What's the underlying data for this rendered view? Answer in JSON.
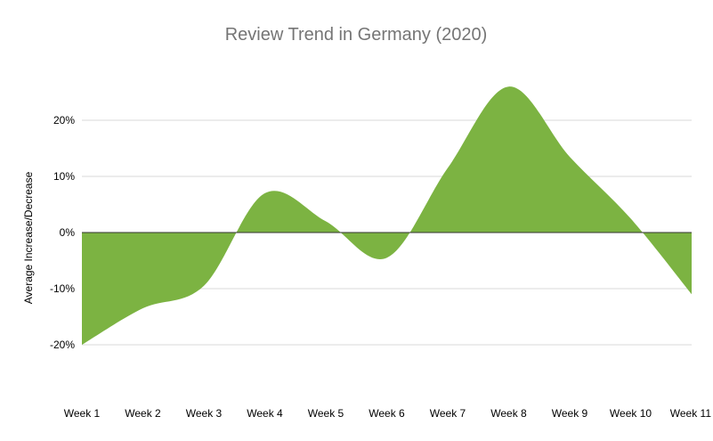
{
  "chart_data": {
    "type": "area",
    "title": "Review Trend in Germany (2020)",
    "xlabel": "",
    "ylabel": "Average Increase/Decrease",
    "categories": [
      "Week 1",
      "Week 2",
      "Week 3",
      "Week 4",
      "Week 5",
      "Week 6",
      "Week 7",
      "Week 8",
      "Week 9",
      "Week 10",
      "Week 11"
    ],
    "series": [
      {
        "values": [
          -0.2,
          -0.135,
          -0.095,
          0.07,
          0.02,
          -0.045,
          0.115,
          0.26,
          0.135,
          0.025,
          -0.11
        ],
        "color": "#7cb342"
      }
    ],
    "yticks": [
      -0.2,
      -0.1,
      0,
      0.1,
      0.2
    ],
    "ytick_labels": [
      "-20%",
      "-10%",
      "0%",
      "10%",
      "20%"
    ],
    "ylim": [
      -0.2,
      0.2
    ],
    "grid": true,
    "legend": "none"
  }
}
